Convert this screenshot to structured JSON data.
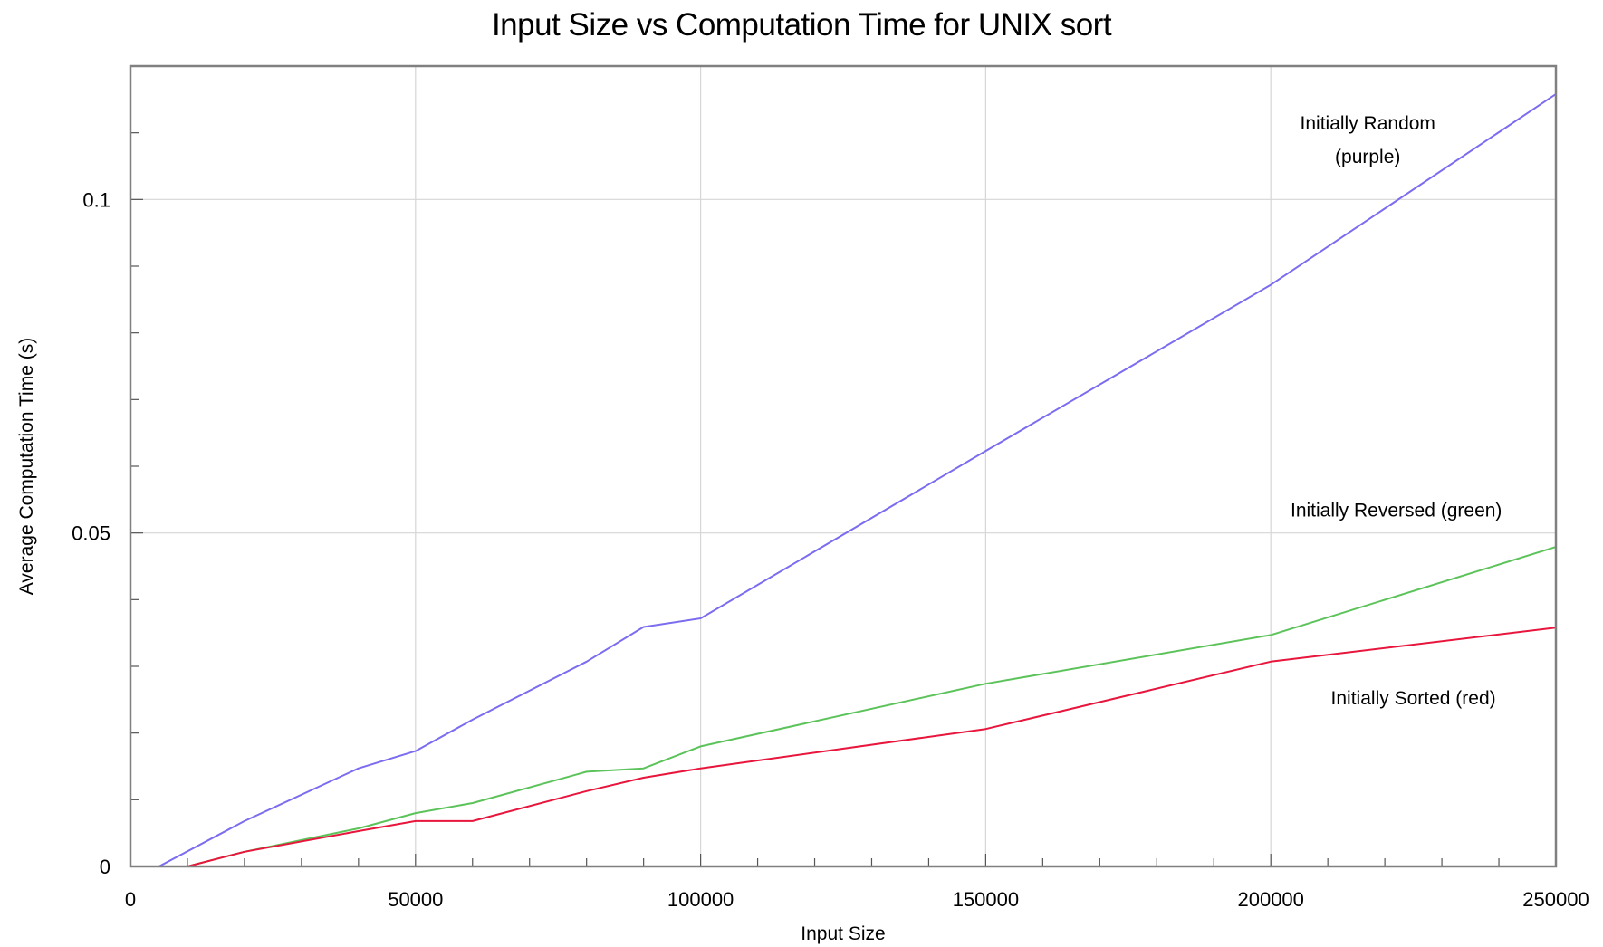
{
  "chart_data": {
    "type": "line",
    "title": "Input Size vs Computation Time for UNIX sort",
    "xlabel": "Input Size",
    "ylabel": "Average Computation Time (s)",
    "xlim": [
      0,
      250000
    ],
    "ylim": [
      0,
      0.12
    ],
    "x_ticks": [
      0,
      50000,
      100000,
      150000,
      200000,
      250000
    ],
    "y_ticks": [
      0,
      0.05,
      0.1
    ],
    "x_tick_labels": [
      "0",
      "50000",
      "100000",
      "150000",
      "200000",
      "250000"
    ],
    "y_tick_labels": [
      "0",
      "0.05",
      "0.1"
    ],
    "grid": true,
    "series": [
      {
        "color": "#7b6cf0",
        "x": [
          5000,
          20000,
          40000,
          50000,
          60000,
          80000,
          90000,
          100000,
          150000,
          200000,
          250000
        ],
        "y": [
          0,
          0.0068,
          0.0147,
          0.0173,
          0.022,
          0.0307,
          0.0359,
          0.0372,
          0.0623,
          0.0872,
          0.1158
        ]
      },
      {
        "color": "#5cc35a",
        "x": [
          10000,
          20000,
          40000,
          50000,
          60000,
          80000,
          90000,
          100000,
          150000,
          200000,
          250000
        ],
        "y": [
          0,
          0.0022,
          0.0057,
          0.008,
          0.0095,
          0.0142,
          0.0147,
          0.018,
          0.0274,
          0.0347,
          0.0479
        ]
      },
      {
        "color": "#e8153c",
        "x": [
          10000,
          20000,
          40000,
          50000,
          60000,
          80000,
          90000,
          100000,
          150000,
          200000,
          250000
        ],
        "y": [
          0,
          0.0022,
          0.0053,
          0.0068,
          0.0068,
          0.0113,
          0.0133,
          0.0147,
          0.0206,
          0.0307,
          0.0358
        ]
      }
    ],
    "annotations": [
      {
        "text": "Initially Random",
        "x": 217000,
        "y": 0.1105
      },
      {
        "text": "(purple)",
        "x": 217000,
        "y": 0.1055
      },
      {
        "text": "Initially Reversed (green)",
        "x": 222000,
        "y": 0.0525
      },
      {
        "text": "Initially Sorted (red)",
        "x": 225000,
        "y": 0.0243
      }
    ]
  }
}
